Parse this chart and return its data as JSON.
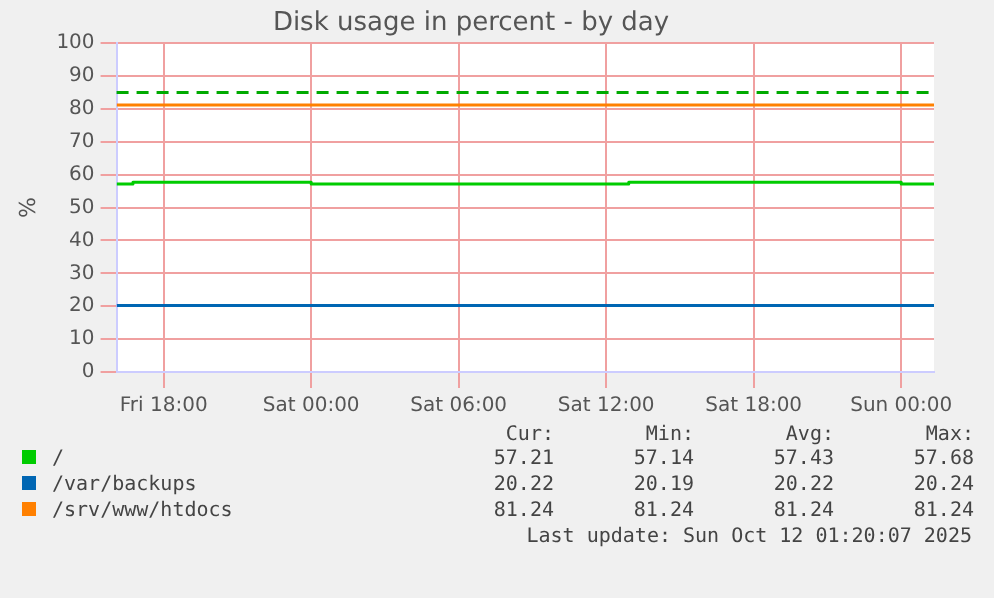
{
  "chart_data": {
    "type": "step",
    "title": "Disk usage in percent - by day",
    "ylabel": "%",
    "xlim": [
      "2025-10-10T16:05",
      "2025-10-12T01:20"
    ],
    "xticks": [
      {
        "value": "2025-10-10T18:00",
        "label": "Fri 18:00"
      },
      {
        "value": "2025-10-11T00:00",
        "label": "Sat 00:00"
      },
      {
        "value": "2025-10-11T06:00",
        "label": "Sat 06:00"
      },
      {
        "value": "2025-10-11T12:00",
        "label": "Sat 12:00"
      },
      {
        "value": "2025-10-11T18:00",
        "label": "Sat 18:00"
      },
      {
        "value": "2025-10-12T00:00",
        "label": "Sun 00:00"
      }
    ],
    "ylim": [
      0,
      100
    ],
    "yticks": [
      0,
      10,
      20,
      30,
      40,
      50,
      60,
      70,
      80,
      90,
      100
    ],
    "series": [
      {
        "name": "/",
        "color": "#00cc00",
        "x": [
          "2025-10-10T16:05",
          "2025-10-10T16:45",
          "2025-10-11T00:00",
          "2025-10-11T12:55",
          "2025-10-12T00:00",
          "2025-10-12T01:20"
        ],
        "values": [
          57.2,
          57.7,
          57.2,
          57.7,
          57.2,
          57.2
        ]
      },
      {
        "name": "/var/backups",
        "color": "#0066b3",
        "x": [
          "2025-10-10T16:05",
          "2025-10-12T01:20"
        ],
        "values": [
          20.2,
          20.2
        ]
      },
      {
        "name": "/srv/www/htdocs",
        "color": "#ff8000",
        "x": [
          "2025-10-10T16:05",
          "2025-10-12T01:20"
        ],
        "values": [
          81.2,
          81.2
        ]
      }
    ],
    "ref_lines": [
      {
        "axis": "y",
        "value": 85,
        "color": "#00aa00",
        "line_style": "dashed"
      }
    ],
    "grid": true,
    "legend": "bottom",
    "annotations": [
      "Cur:",
      "Min:",
      "Avg:",
      "Max:",
      "57.21",
      "57.14",
      "57.43",
      "57.68",
      "20.22",
      "20.19",
      "20.22",
      "20.24",
      "81.24",
      "81.24",
      "81.24",
      "81.24",
      "Last update: Sun Oct 12 01:20:07 2025"
    ]
  }
}
